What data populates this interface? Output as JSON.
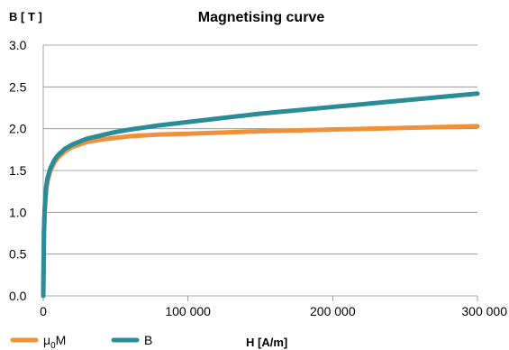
{
  "chart_data": {
    "type": "line",
    "title": "Magnetising curve",
    "xlabel": "H [A/m]",
    "ylabel": "B [ T ]",
    "xlim": [
      0,
      300000
    ],
    "ylim": [
      0,
      3.0
    ],
    "x_ticks": [
      0,
      100000,
      200000,
      300000
    ],
    "x_tick_labels": [
      "0",
      "100 000",
      "200 000",
      "300 000"
    ],
    "y_ticks": [
      0,
      0.5,
      1.0,
      1.5,
      2.0,
      2.5,
      3.0
    ],
    "y_tick_labels": [
      "0.0",
      "0.5",
      "1.0",
      "1.5",
      "2.0",
      "2.5",
      "3.0"
    ],
    "grid": "horizontal",
    "legend_position": "bottom-left",
    "series": [
      {
        "name": "μ0M",
        "legend_base": "μ",
        "legend_sub": "0",
        "legend_tail": "M",
        "color": "#f0913a",
        "x": [
          0,
          500,
          1000,
          2000,
          3000,
          5000,
          7500,
          10000,
          15000,
          20000,
          30000,
          40000,
          50000,
          60000,
          80000,
          100000,
          150000,
          200000,
          250000,
          300000
        ],
        "y": [
          0,
          0.75,
          1.02,
          1.27,
          1.38,
          1.5,
          1.59,
          1.65,
          1.73,
          1.78,
          1.84,
          1.87,
          1.89,
          1.91,
          1.93,
          1.94,
          1.97,
          1.99,
          2.01,
          2.03
        ]
      },
      {
        "name": "B",
        "legend_base": "B",
        "legend_sub": "",
        "legend_tail": "",
        "color": "#2a8c98",
        "x": [
          0,
          500,
          1000,
          2000,
          3000,
          5000,
          7500,
          10000,
          15000,
          20000,
          30000,
          40000,
          50000,
          60000,
          80000,
          100000,
          150000,
          200000,
          250000,
          300000
        ],
        "y": [
          0,
          0.77,
          1.04,
          1.3,
          1.41,
          1.53,
          1.62,
          1.68,
          1.76,
          1.81,
          1.88,
          1.92,
          1.96,
          1.99,
          2.04,
          2.08,
          2.18,
          2.26,
          2.34,
          2.42
        ]
      }
    ]
  }
}
